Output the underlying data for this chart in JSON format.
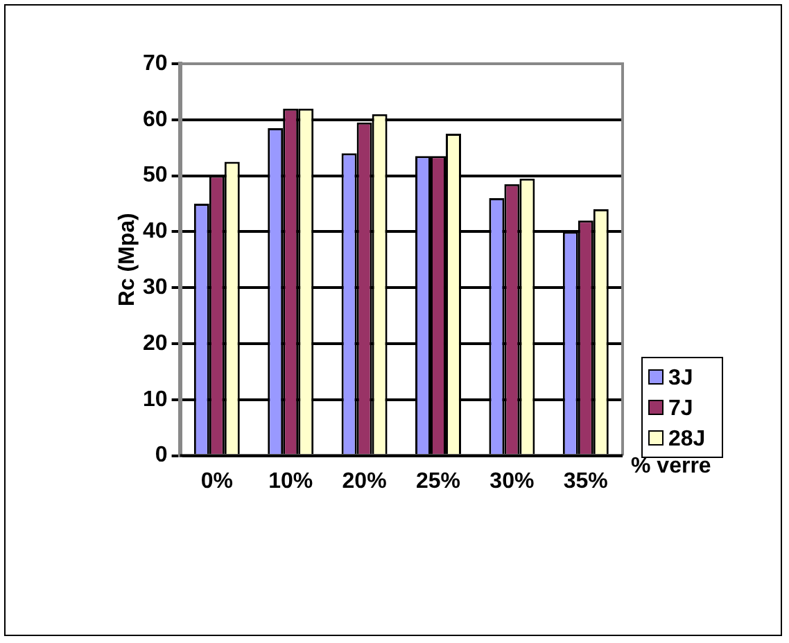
{
  "chart_data": {
    "type": "bar",
    "ylabel": "Rc (Mpa)",
    "xlabel": "% verre",
    "categories": [
      "0%",
      "10%",
      "20%",
      "25%",
      "30%",
      "35%"
    ],
    "series": [
      {
        "name": "3J",
        "color": "#9999ff",
        "values": [
          45,
          58.5,
          54,
          53.5,
          46,
          40
        ]
      },
      {
        "name": "7J",
        "color": "#993366",
        "values": [
          50,
          62,
          59.5,
          53.5,
          48.5,
          42
        ]
      },
      {
        "name": "28J",
        "color": "#ffffcc",
        "values": [
          52.5,
          62,
          61,
          57.5,
          49.5,
          44
        ]
      }
    ],
    "ylim": [
      0,
      70
    ],
    "yticks": [
      0,
      10,
      20,
      30,
      40,
      50,
      60,
      70
    ],
    "grid": "y",
    "legend": "right"
  }
}
